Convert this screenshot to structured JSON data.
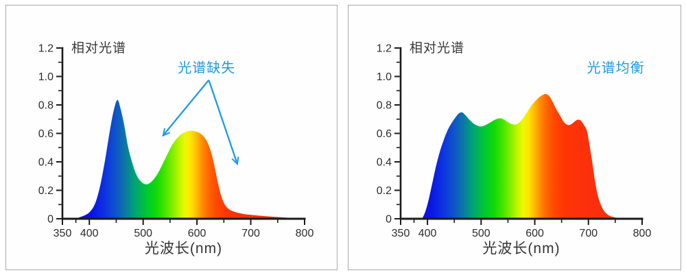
{
  "accent_blue": "#1e9ae4",
  "axis_color": "#1a1a1a",
  "text_color": "#2d2d2d",
  "panel_border_color": "#a9a9a9",
  "spectral_gradient": [
    [
      380,
      "#1a0ad0"
    ],
    [
      405,
      "#0a14e6"
    ],
    [
      430,
      "#0c35e0"
    ],
    [
      450,
      "#0f55c8"
    ],
    [
      465,
      "#0d74a8"
    ],
    [
      480,
      "#009b80"
    ],
    [
      495,
      "#00b553"
    ],
    [
      510,
      "#00cd28"
    ],
    [
      525,
      "#12da06"
    ],
    [
      540,
      "#44e400"
    ],
    [
      555,
      "#84ee00"
    ],
    [
      568,
      "#c2f500"
    ],
    [
      578,
      "#eef800"
    ],
    [
      588,
      "#ffe600"
    ],
    [
      598,
      "#ffc000"
    ],
    [
      608,
      "#ff9400"
    ],
    [
      620,
      "#ff6a00"
    ],
    [
      635,
      "#ff4a00"
    ],
    [
      655,
      "#ff3504"
    ],
    [
      700,
      "#fc2f0c"
    ],
    [
      800,
      "#fa3012"
    ]
  ],
  "chart_data": [
    {
      "type": "area",
      "title": "相对光谱",
      "xlabel": "光波长(nm)",
      "xlim": [
        350,
        800
      ],
      "ylim": [
        0,
        1.2
      ],
      "x_ticks": {
        "major": [
          {
            "v": 350,
            "label": "350"
          },
          {
            "v": 400,
            "label": "400"
          },
          {
            "v": 500,
            "label": "500"
          },
          {
            "v": 600,
            "label": "600"
          },
          {
            "v": 700,
            "label": "700"
          },
          {
            "v": 800,
            "label": "800"
          }
        ],
        "minor": [
          375,
          450,
          550,
          650,
          750
        ]
      },
      "y_ticks": {
        "major": [
          {
            "v": 0,
            "label": "0"
          },
          {
            "v": 0.2,
            "label": "0.2"
          },
          {
            "v": 0.4,
            "label": "0.4"
          },
          {
            "v": 0.6,
            "label": "0.6"
          },
          {
            "v": 0.8,
            "label": "0.8"
          },
          {
            "v": 1.0,
            "label": "1.0"
          },
          {
            "v": 1.2,
            "label": "1.2"
          }
        ],
        "minor": [
          0.1,
          0.3,
          0.5,
          0.7,
          0.9,
          1.1
        ]
      },
      "annotation": {
        "text": "光谱缺失",
        "x": 618,
        "y": 1.07,
        "arrows": [
          {
            "from": [
              622,
              0.975
            ],
            "to": [
              537,
              0.585
            ]
          },
          {
            "from": [
              622,
              0.975
            ],
            "to": [
              675,
              0.385
            ]
          }
        ]
      },
      "series": [
        {
          "name": "相对光谱 (缺失)",
          "points": [
            [
              374,
              0
            ],
            [
              383,
              0.012
            ],
            [
              392,
              0.025
            ],
            [
              400,
              0.045
            ],
            [
              408,
              0.085
            ],
            [
              415,
              0.155
            ],
            [
              422,
              0.265
            ],
            [
              430,
              0.43
            ],
            [
              438,
              0.615
            ],
            [
              445,
              0.755
            ],
            [
              452,
              0.835
            ],
            [
              458,
              0.775
            ],
            [
              465,
              0.655
            ],
            [
              472,
              0.505
            ],
            [
              480,
              0.39
            ],
            [
              488,
              0.305
            ],
            [
              496,
              0.262
            ],
            [
              503,
              0.244
            ],
            [
              510,
              0.246
            ],
            [
              518,
              0.27
            ],
            [
              527,
              0.317
            ],
            [
              536,
              0.383
            ],
            [
              545,
              0.453
            ],
            [
              554,
              0.52
            ],
            [
              563,
              0.566
            ],
            [
              572,
              0.597
            ],
            [
              581,
              0.614
            ],
            [
              590,
              0.619
            ],
            [
              598,
              0.613
            ],
            [
              606,
              0.6
            ],
            [
              613,
              0.576
            ],
            [
              620,
              0.532
            ],
            [
              627,
              0.458
            ],
            [
              633,
              0.36
            ],
            [
              639,
              0.252
            ],
            [
              645,
              0.162
            ],
            [
              651,
              0.104
            ],
            [
              658,
              0.072
            ],
            [
              666,
              0.054
            ],
            [
              676,
              0.042
            ],
            [
              688,
              0.033
            ],
            [
              702,
              0.027
            ],
            [
              718,
              0.021
            ],
            [
              736,
              0.016
            ],
            [
              755,
              0.011
            ],
            [
              775,
              0.006
            ],
            [
              795,
              0.002
            ],
            [
              800,
              0.002
            ]
          ]
        }
      ]
    },
    {
      "type": "area",
      "title": "相对光谱",
      "xlabel": "光波长(nm)",
      "xlim": [
        350,
        800
      ],
      "ylim": [
        0,
        1.2
      ],
      "x_ticks": {
        "major": [
          {
            "v": 350,
            "label": "350"
          },
          {
            "v": 400,
            "label": "400"
          },
          {
            "v": 500,
            "label": "500"
          },
          {
            "v": 600,
            "label": "600"
          },
          {
            "v": 700,
            "label": "700"
          },
          {
            "v": 800,
            "label": "800"
          }
        ],
        "minor": [
          375,
          450,
          550,
          650,
          750
        ]
      },
      "y_ticks": {
        "major": [
          {
            "v": 0,
            "label": "0"
          },
          {
            "v": 0.2,
            "label": "0.2"
          },
          {
            "v": 0.4,
            "label": "0.4"
          },
          {
            "v": 0.6,
            "label": "0.6"
          },
          {
            "v": 0.8,
            "label": "0.8"
          },
          {
            "v": 1.0,
            "label": "1.0"
          },
          {
            "v": 1.2,
            "label": "1.2"
          }
        ],
        "minor": [
          0.1,
          0.3,
          0.5,
          0.7,
          0.9,
          1.1
        ]
      },
      "annotation": {
        "text": "光谱均衡",
        "x": 751,
        "y": 1.07,
        "arrows": []
      },
      "series": [
        {
          "name": "相对光谱 (均衡)",
          "points": [
            [
              390,
              0
            ],
            [
              396,
              0.05
            ],
            [
              402,
              0.13
            ],
            [
              409,
              0.25
            ],
            [
              416,
              0.37
            ],
            [
              423,
              0.47
            ],
            [
              430,
              0.55
            ],
            [
              438,
              0.625
            ],
            [
              446,
              0.678
            ],
            [
              453,
              0.716
            ],
            [
              459,
              0.742
            ],
            [
              465,
              0.747
            ],
            [
              471,
              0.727
            ],
            [
              478,
              0.697
            ],
            [
              485,
              0.672
            ],
            [
              492,
              0.656
            ],
            [
              499,
              0.648
            ],
            [
              506,
              0.655
            ],
            [
              513,
              0.668
            ],
            [
              521,
              0.686
            ],
            [
              529,
              0.701
            ],
            [
              536,
              0.706
            ],
            [
              543,
              0.696
            ],
            [
              550,
              0.679
            ],
            [
              557,
              0.666
            ],
            [
              563,
              0.662
            ],
            [
              570,
              0.673
            ],
            [
              577,
              0.701
            ],
            [
              585,
              0.745
            ],
            [
              593,
              0.792
            ],
            [
              601,
              0.828
            ],
            [
              609,
              0.857
            ],
            [
              616,
              0.872
            ],
            [
              622,
              0.876
            ],
            [
              628,
              0.856
            ],
            [
              634,
              0.816
            ],
            [
              640,
              0.771
            ],
            [
              647,
              0.726
            ],
            [
              653,
              0.686
            ],
            [
              659,
              0.663
            ],
            [
              665,
              0.659
            ],
            [
              671,
              0.673
            ],
            [
              677,
              0.691
            ],
            [
              682,
              0.696
            ],
            [
              687,
              0.686
            ],
            [
              692,
              0.656
            ],
            [
              697,
              0.62
            ],
            [
              702,
              0.52
            ],
            [
              707,
              0.4
            ],
            [
              712,
              0.27
            ],
            [
              717,
              0.17
            ],
            [
              723,
              0.1
            ],
            [
              730,
              0.05
            ],
            [
              740,
              0.02
            ],
            [
              752,
              0.007
            ],
            [
              762,
              0.002
            ],
            [
              768,
              0
            ]
          ]
        }
      ]
    }
  ]
}
